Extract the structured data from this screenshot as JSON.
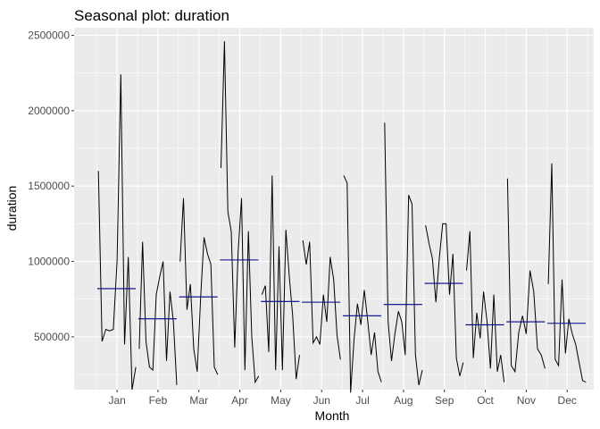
{
  "chart_data": {
    "type": "line",
    "title": "Seasonal plot: duration",
    "xlabel": "Month",
    "ylabel": "duration",
    "categories": [
      "Jan",
      "Feb",
      "Mar",
      "Apr",
      "May",
      "Jun",
      "Jul",
      "Aug",
      "Sep",
      "Oct",
      "Nov",
      "Dec"
    ],
    "yticks": [
      500000,
      1000000,
      1500000,
      2000000,
      2500000
    ],
    "ytick_labels": [
      "500000",
      "1000000",
      "1500000",
      "2000000",
      "2500000"
    ],
    "ylim": [
      150000,
      2550000
    ],
    "grid": true,
    "colors": {
      "panel": "#ebebeb",
      "grid": "#ffffff",
      "line": "#000000",
      "mean": "#00008b"
    },
    "months": [
      {
        "name": "Jan",
        "mean": 820000,
        "values": [
          1600000,
          470000,
          550000,
          540000,
          550000,
          1000000,
          2240000,
          450000,
          1030000,
          150000,
          300000
        ]
      },
      {
        "name": "Feb",
        "mean": 620000,
        "values": [
          420000,
          1130000,
          470000,
          300000,
          280000,
          780000,
          900000,
          1000000,
          340000,
          800000,
          600000,
          180000
        ]
      },
      {
        "name": "Mar",
        "mean": 765000,
        "values": [
          1000000,
          1420000,
          680000,
          850000,
          420000,
          270000,
          760000,
          1160000,
          1050000,
          980000,
          300000,
          250000
        ]
      },
      {
        "name": "Apr",
        "mean": 1010000,
        "values": [
          1620000,
          2460000,
          1330000,
          1200000,
          430000,
          1060000,
          1420000,
          280000,
          1200000,
          500000,
          200000,
          240000
        ]
      },
      {
        "name": "May",
        "mean": 735000,
        "values": [
          780000,
          840000,
          400000,
          1570000,
          280000,
          1100000,
          280000,
          1210000,
          900000,
          640000,
          220000,
          380000
        ]
      },
      {
        "name": "Jun",
        "mean": 730000,
        "values": [
          1140000,
          980000,
          1130000,
          460000,
          500000,
          450000,
          780000,
          600000,
          1030000,
          880000,
          510000,
          350000
        ]
      },
      {
        "name": "Jul",
        "mean": 640000,
        "values": [
          1570000,
          1520000,
          130000,
          480000,
          720000,
          580000,
          810000,
          610000,
          380000,
          530000,
          270000,
          200000
        ]
      },
      {
        "name": "Aug",
        "mean": 715000,
        "values": [
          1920000,
          600000,
          340000,
          520000,
          670000,
          600000,
          380000,
          1440000,
          1380000,
          380000,
          180000,
          280000
        ]
      },
      {
        "name": "Sep",
        "mean": 855000,
        "values": [
          1240000,
          1120000,
          1020000,
          730000,
          1020000,
          1250000,
          1250000,
          780000,
          1050000,
          360000,
          240000,
          330000
        ]
      },
      {
        "name": "Oct",
        "mean": 580000,
        "values": [
          940000,
          1200000,
          360000,
          660000,
          490000,
          800000,
          600000,
          290000,
          780000,
          270000,
          380000,
          200000
        ]
      },
      {
        "name": "Nov",
        "mean": 600000,
        "values": [
          1550000,
          310000,
          270000,
          530000,
          640000,
          520000,
          940000,
          800000,
          420000,
          380000,
          290000
        ]
      },
      {
        "name": "Dec",
        "mean": 590000,
        "values": [
          850000,
          1650000,
          350000,
          310000,
          880000,
          390000,
          620000,
          520000,
          450000,
          330000,
          210000,
          200000
        ]
      }
    ]
  }
}
